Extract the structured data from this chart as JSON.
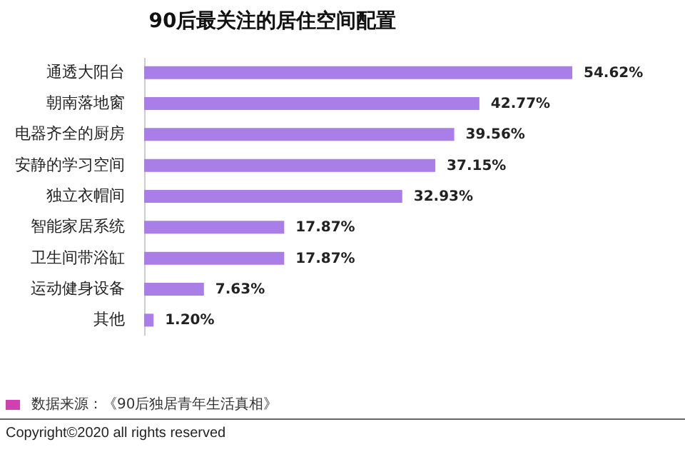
{
  "chart_data": {
    "type": "bar",
    "orientation": "horizontal",
    "title": "90后最关注的居住空间配置",
    "categories": [
      "通透大阳台",
      "朝南落地窗",
      "电器齐全的厨房",
      "安静的学习空间",
      "独立衣帽间",
      "智能家居系统",
      "卫生间带浴缸",
      "运动健身设备",
      "其他"
    ],
    "values": [
      54.62,
      42.77,
      39.56,
      37.15,
      32.93,
      17.87,
      17.87,
      7.63,
      1.2
    ],
    "value_labels": [
      "54.62%",
      "42.77%",
      "39.56%",
      "37.15%",
      "32.93%",
      "17.87%",
      "17.87%",
      "7.63%",
      "1.20%"
    ],
    "color": "#a97ee6",
    "grid": false,
    "annotations": [
      "数据来源：《90后独居青年生活真相》",
      "Copyright©2020 all rights reserved"
    ]
  }
}
